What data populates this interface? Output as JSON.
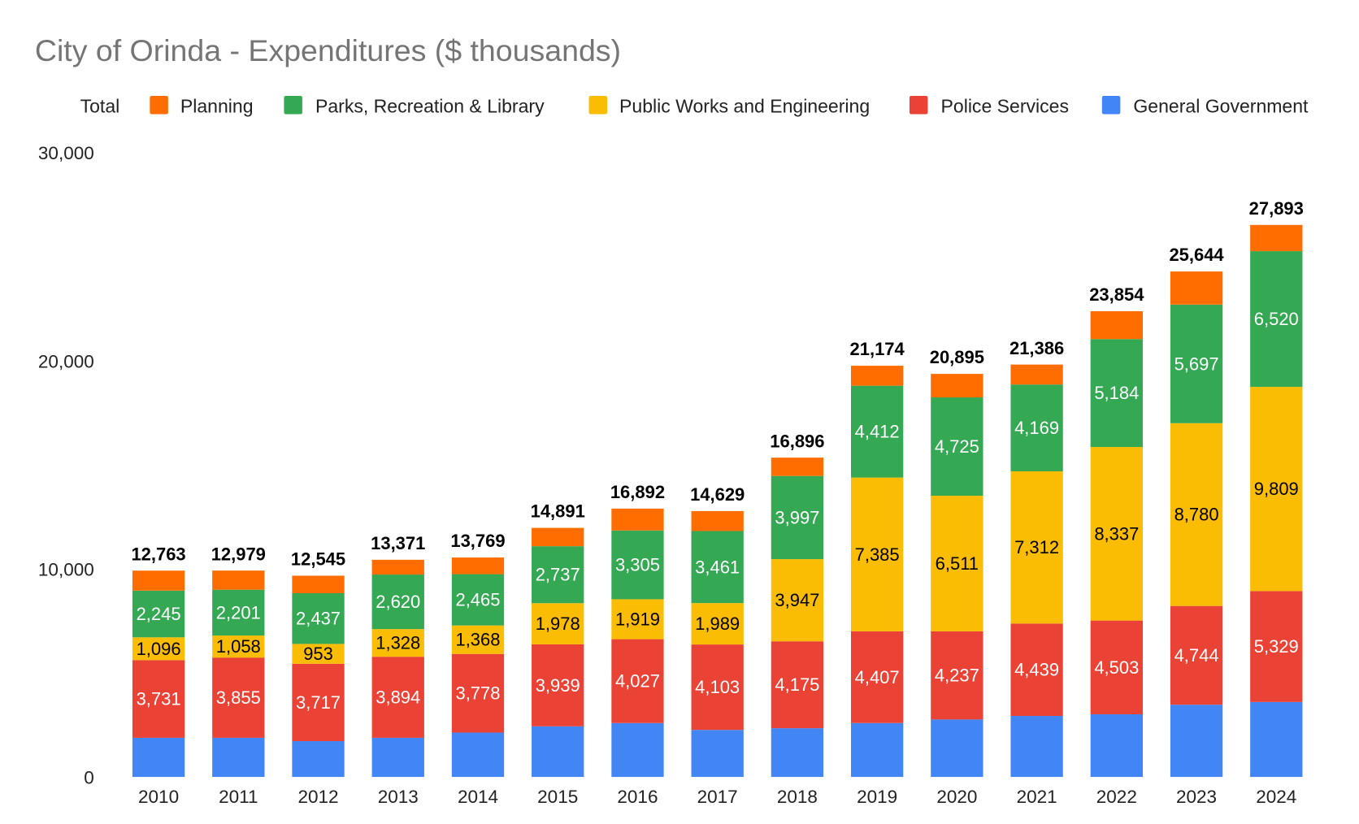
{
  "chart_data": {
    "type": "bar",
    "stacked": true,
    "title": "City of Orinda - Expenditures ($ thousands)",
    "xlabel": "",
    "ylabel": "",
    "ylim": [
      0,
      30000
    ],
    "y_ticks": [
      "0",
      "10,000",
      "20,000",
      "30,000"
    ],
    "grid": false,
    "legend_position": "top",
    "legend": [
      "Total",
      "Planning",
      "Parks, Recreation & Library",
      "Public Works and Engineering",
      "Police Services",
      "General Government"
    ],
    "categories": [
      "2010",
      "2011",
      "2012",
      "2013",
      "2014",
      "2015",
      "2016",
      "2017",
      "2018",
      "2019",
      "2020",
      "2021",
      "2022",
      "2023",
      "2024"
    ],
    "series": [
      {
        "name": "General Government",
        "color": "#4285f4",
        "labeled": false,
        "values": [
          1880,
          1880,
          1720,
          1880,
          2130,
          2430,
          2590,
          2260,
          2340,
          2590,
          2760,
          2930,
          3010,
          3470,
          3600
        ]
      },
      {
        "name": "Police Services",
        "color": "#ea4335",
        "labeled": true,
        "label_color": "#ffffff",
        "values": [
          3731,
          3855,
          3717,
          3894,
          3778,
          3939,
          4027,
          4103,
          4175,
          4407,
          4237,
          4439,
          4503,
          4744,
          5329
        ],
        "labels": [
          "3,731",
          "3,855",
          "3,717",
          "3,894",
          "3,778",
          "3,939",
          "4,027",
          "4,103",
          "4,175",
          "4,407",
          "4,237",
          "4,439",
          "4,503",
          "4,744",
          "5,329"
        ]
      },
      {
        "name": "Public Works and Engineering",
        "color": "#fbbc04",
        "labeled": true,
        "label_color": "#000000",
        "values": [
          1096,
          1058,
          953,
          1328,
          1368,
          1978,
          1919,
          1989,
          3947,
          7385,
          6511,
          7312,
          8337,
          8780,
          9809
        ],
        "labels": [
          "1,096",
          "1,058",
          "953",
          "1,328",
          "1,368",
          "1,978",
          "1,919",
          "1,989",
          "3,947",
          "7,385",
          "6,511",
          "7,312",
          "8,337",
          "8,780",
          "9,809"
        ]
      },
      {
        "name": "Parks, Recreation & Library",
        "color": "#34a853",
        "labeled": true,
        "label_color": "#ffffff",
        "values": [
          2245,
          2201,
          2437,
          2620,
          2465,
          2737,
          3305,
          3461,
          3997,
          4412,
          4725,
          4169,
          5184,
          5697,
          6520
        ],
        "labels": [
          "2,245",
          "2,201",
          "2,437",
          "2,620",
          "2,465",
          "2,737",
          "3,305",
          "3,461",
          "3,997",
          "4,412",
          "4,725",
          "4,169",
          "5,184",
          "5,697",
          "6,520"
        ]
      },
      {
        "name": "Planning",
        "color": "#ff6d01",
        "labeled": false,
        "values": [
          960,
          920,
          840,
          710,
          800,
          880,
          1050,
          960,
          880,
          960,
          1130,
          960,
          1340,
          1590,
          1260
        ]
      }
    ],
    "totals": {
      "name": "Total",
      "values": [
        12763,
        12979,
        12545,
        13371,
        13769,
        14891,
        16892,
        14629,
        16896,
        21174,
        20895,
        21386,
        23854,
        25644,
        27893
      ],
      "labels": [
        "12,763",
        "12,979",
        "12,545",
        "13,371",
        "13,769",
        "14,891",
        "16,892",
        "14,629",
        "16,896",
        "21,174",
        "20,895",
        "21,386",
        "23,854",
        "25,644",
        "27,893"
      ]
    }
  }
}
